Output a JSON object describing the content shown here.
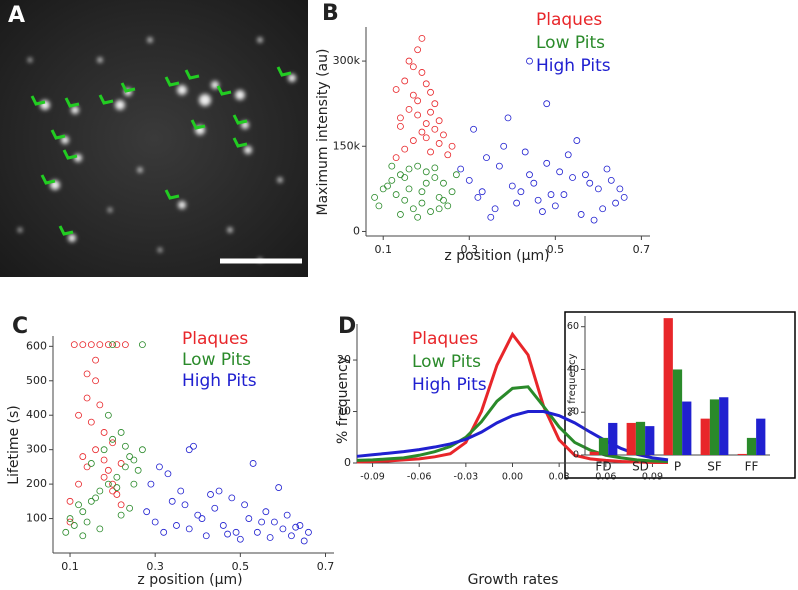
{
  "chart_data": [
    {
      "type": "image",
      "panel": "A"
    },
    {
      "type": "scatter",
      "panel": "B",
      "y_label": "Maximum intensity (au)",
      "x_label": "z position (μm)",
      "xlim": [
        0.06,
        0.72
      ],
      "xticks": [
        0.1,
        0.3,
        0.5,
        0.7
      ],
      "ylim": [
        -8000,
        360000
      ],
      "yticks": [
        {
          "value": 0,
          "label": "0"
        },
        {
          "value": 150000,
          "label": "150k"
        },
        {
          "value": 300000,
          "label": "300k"
        }
      ],
      "series": [
        {
          "name": "Plaques",
          "color": "#e8262a",
          "x": [
            0.13,
            0.15,
            0.17,
            0.19,
            0.21,
            0.23,
            0.25,
            0.14,
            0.16,
            0.18,
            0.2,
            0.22,
            0.24,
            0.26,
            0.13,
            0.15,
            0.17,
            0.19,
            0.21,
            0.23,
            0.16,
            0.18,
            0.2,
            0.22,
            0.14,
            0.17,
            0.19,
            0.21,
            0.2,
            0.18
          ],
          "values": [
            130000,
            145000,
            160000,
            175000,
            140000,
            155000,
            135000,
            200000,
            215000,
            230000,
            190000,
            180000,
            170000,
            150000,
            250000,
            265000,
            240000,
            280000,
            210000,
            195000,
            300000,
            320000,
            260000,
            225000,
            185000,
            290000,
            340000,
            245000,
            165000,
            205000
          ]
        },
        {
          "name": "Low Pits",
          "color": "#2a8a2a",
          "x": [
            0.08,
            0.1,
            0.12,
            0.14,
            0.16,
            0.18,
            0.2,
            0.22,
            0.24,
            0.26,
            0.09,
            0.11,
            0.13,
            0.15,
            0.17,
            0.19,
            0.21,
            0.23,
            0.25,
            0.27,
            0.12,
            0.14,
            0.16,
            0.18,
            0.2,
            0.22,
            0.24,
            0.15,
            0.19,
            0.23
          ],
          "values": [
            60000,
            75000,
            90000,
            100000,
            110000,
            115000,
            105000,
            95000,
            85000,
            70000,
            45000,
            80000,
            65000,
            55000,
            40000,
            50000,
            35000,
            60000,
            45000,
            100000,
            115000,
            30000,
            75000,
            25000,
            85000,
            112000,
            55000,
            95000,
            70000,
            40000
          ]
        },
        {
          "name": "High Pits",
          "color": "#2020d0",
          "x": [
            0.28,
            0.3,
            0.32,
            0.34,
            0.36,
            0.38,
            0.4,
            0.42,
            0.44,
            0.46,
            0.48,
            0.5,
            0.52,
            0.54,
            0.56,
            0.58,
            0.6,
            0.62,
            0.64,
            0.66,
            0.31,
            0.35,
            0.39,
            0.43,
            0.47,
            0.51,
            0.55,
            0.59,
            0.63,
            0.33,
            0.37,
            0.41,
            0.45,
            0.49,
            0.53,
            0.57,
            0.61,
            0.65,
            0.44,
            0.48
          ],
          "values": [
            110000,
            90000,
            60000,
            130000,
            40000,
            150000,
            80000,
            70000,
            100000,
            55000,
            120000,
            45000,
            65000,
            95000,
            30000,
            85000,
            75000,
            110000,
            50000,
            60000,
            180000,
            25000,
            200000,
            140000,
            35000,
            105000,
            160000,
            20000,
            90000,
            70000,
            115000,
            50000,
            85000,
            65000,
            135000,
            100000,
            40000,
            75000,
            300000,
            225000
          ]
        }
      ]
    },
    {
      "type": "scatter",
      "panel": "C",
      "y_label": "Lifetime (s)",
      "x_label": "z position (μm)",
      "xlim": [
        0.06,
        0.72
      ],
      "xticks": [
        0.1,
        0.3,
        0.5,
        0.7
      ],
      "ylim": [
        0,
        630
      ],
      "yticks": [
        100,
        200,
        300,
        400,
        500,
        600
      ],
      "series": [
        {
          "name": "Plaques",
          "color": "#e8262a",
          "x": [
            0.1,
            0.12,
            0.14,
            0.16,
            0.18,
            0.2,
            0.22,
            0.11,
            0.13,
            0.15,
            0.17,
            0.19,
            0.21,
            0.23,
            0.12,
            0.14,
            0.16,
            0.18,
            0.2,
            0.1,
            0.13,
            0.15,
            0.17,
            0.19,
            0.21,
            0.14,
            0.16,
            0.18,
            0.2,
            0.22
          ],
          "values": [
            150,
            200,
            250,
            300,
            220,
            180,
            260,
            605,
            605,
            605,
            605,
            605,
            605,
            605,
            400,
            450,
            500,
            350,
            320,
            90,
            280,
            380,
            430,
            240,
            170,
            520,
            560,
            270,
            200,
            140
          ]
        },
        {
          "name": "Low Pits",
          "color": "#2a8a2a",
          "x": [
            0.09,
            0.11,
            0.13,
            0.15,
            0.17,
            0.19,
            0.21,
            0.23,
            0.25,
            0.27,
            0.1,
            0.12,
            0.14,
            0.16,
            0.18,
            0.2,
            0.22,
            0.24,
            0.26,
            0.27,
            0.15,
            0.2,
            0.25,
            0.23,
            0.21,
            0.19,
            0.17,
            0.13,
            0.24,
            0.22
          ],
          "values": [
            60,
            80,
            120,
            150,
            180,
            200,
            220,
            250,
            270,
            300,
            100,
            140,
            90,
            160,
            300,
            330,
            350,
            280,
            240,
            605,
            260,
            605,
            200,
            310,
            190,
            400,
            70,
            50,
            130,
            110
          ]
        },
        {
          "name": "High Pits",
          "color": "#2020d0",
          "x": [
            0.28,
            0.3,
            0.32,
            0.34,
            0.36,
            0.38,
            0.4,
            0.42,
            0.44,
            0.46,
            0.48,
            0.5,
            0.52,
            0.54,
            0.56,
            0.58,
            0.6,
            0.62,
            0.64,
            0.66,
            0.29,
            0.33,
            0.37,
            0.41,
            0.45,
            0.49,
            0.53,
            0.57,
            0.61,
            0.65,
            0.31,
            0.35,
            0.39,
            0.43,
            0.47,
            0.51,
            0.55,
            0.59,
            0.63,
            0.38
          ],
          "values": [
            120,
            90,
            60,
            150,
            180,
            70,
            110,
            50,
            130,
            80,
            160,
            40,
            100,
            60,
            120,
            90,
            70,
            50,
            80,
            60,
            200,
            230,
            140,
            100,
            180,
            60,
            260,
            45,
            110,
            35,
            250,
            80,
            310,
            170,
            55,
            140,
            90,
            190,
            75,
            300
          ]
        }
      ]
    },
    {
      "type": "line",
      "panel": "D",
      "y_label": "% frequency",
      "x_label": "Growth rates",
      "xlim": [
        -0.1,
        0.1
      ],
      "xticks": [
        -0.09,
        -0.06,
        -0.03,
        {
          "value": 0,
          "label": "0.00"
        },
        0.03,
        0.06,
        0.09
      ],
      "ylim": [
        0,
        27
      ],
      "yticks": [
        0,
        10,
        20
      ],
      "x": [
        -0.1,
        -0.09,
        -0.08,
        -0.07,
        -0.06,
        -0.05,
        -0.04,
        -0.03,
        -0.02,
        -0.01,
        0,
        0.01,
        0.02,
        0.03,
        0.04,
        0.05,
        0.06,
        0.07,
        0.08,
        0.09,
        0.1
      ],
      "series": [
        {
          "name": "Plaques",
          "color": "#e8262a",
          "values": [
            0.2,
            0.3,
            0.4,
            0.6,
            0.8,
            1.2,
            1.8,
            4,
            10,
            19,
            25,
            21,
            11,
            4.5,
            1.5,
            0.8,
            0.5,
            0.3,
            0.2,
            0.1,
            0.1
          ]
        },
        {
          "name": "Low Pits",
          "color": "#2a8a2a",
          "values": [
            0.5,
            0.6,
            0.8,
            1,
            1.5,
            2.2,
            3.2,
            5,
            8,
            12,
            14.5,
            14.8,
            11,
            7,
            4,
            2.5,
            1.5,
            1,
            0.6,
            0.4,
            0.3
          ]
        },
        {
          "name": "High Pits",
          "color": "#2020d0",
          "values": [
            1.3,
            1.6,
            1.9,
            2.2,
            2.6,
            3.1,
            3.7,
            4.6,
            6,
            7.8,
            9.2,
            10,
            10,
            9.2,
            7.8,
            6,
            4.3,
            2.8,
            1.7,
            1,
            0.6
          ]
        }
      ]
    },
    {
      "type": "bar",
      "y_label": "% frequency",
      "categories": [
        "FD",
        "SD",
        "P",
        "SF",
        "FF"
      ],
      "ylim": [
        0,
        65
      ],
      "yticks": [
        0,
        20,
        40,
        60
      ],
      "series": [
        {
          "color": "#e8262a",
          "values": [
            1.5,
            15,
            64,
            17,
            0.5
          ]
        },
        {
          "color": "#2a8a2a",
          "values": [
            8,
            15.5,
            40,
            26,
            8
          ]
        },
        {
          "color": "#2020d0",
          "values": [
            15,
            13.5,
            25,
            27,
            17
          ]
        }
      ]
    }
  ]
}
